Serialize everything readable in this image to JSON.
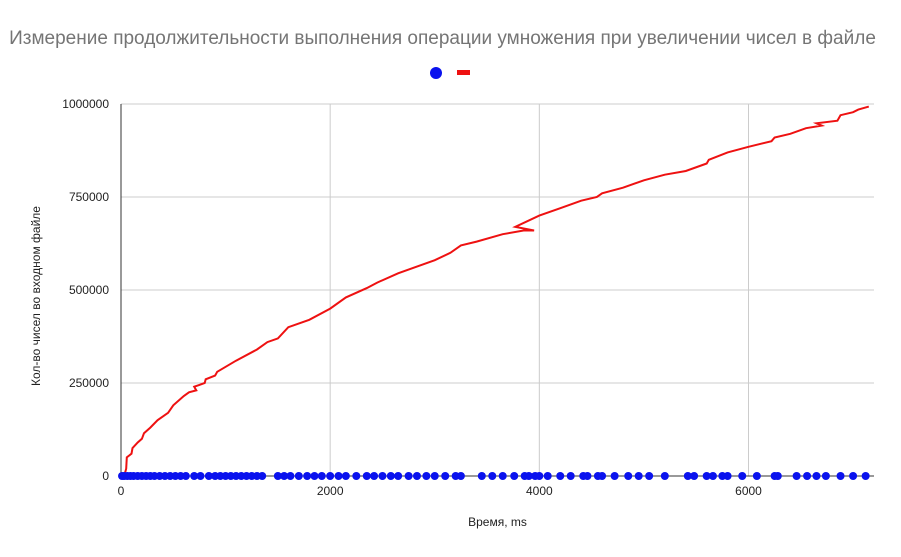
{
  "chart_data": {
    "type": "scatter",
    "title": "Измерение продолжительности выполнения операции умножения при увеличении чисел в файле",
    "xlabel": "Время, ms",
    "ylabel": "Кол-во чисел во входном файле",
    "xlim": [
      0,
      7200
    ],
    "ylim": [
      0,
      1000000
    ],
    "xticks": [
      "0",
      "2000",
      "4000",
      "6000"
    ],
    "yticks": [
      "0",
      "250000",
      "500000",
      "750000",
      "1000000"
    ],
    "grid": true,
    "legend": "top-center",
    "colors": {
      "blue": "#0a12ee",
      "red": "#ee1111",
      "grid": "#cccccc",
      "axis": "#333333"
    },
    "series": [
      {
        "marker": "dot",
        "color": "#0a12ee",
        "points": [
          [
            10,
            0
          ],
          [
            30,
            0
          ],
          [
            60,
            0
          ],
          [
            90,
            0
          ],
          [
            120,
            0
          ],
          [
            160,
            0
          ],
          [
            200,
            0
          ],
          [
            240,
            0
          ],
          [
            280,
            0
          ],
          [
            320,
            0
          ],
          [
            370,
            0
          ],
          [
            420,
            0
          ],
          [
            470,
            0
          ],
          [
            520,
            0
          ],
          [
            570,
            0
          ],
          [
            620,
            0
          ],
          [
            700,
            0
          ],
          [
            760,
            0
          ],
          [
            840,
            0
          ],
          [
            900,
            0
          ],
          [
            950,
            0
          ],
          [
            1000,
            0
          ],
          [
            1050,
            0
          ],
          [
            1100,
            0
          ],
          [
            1150,
            0
          ],
          [
            1200,
            0
          ],
          [
            1250,
            0
          ],
          [
            1300,
            0
          ],
          [
            1350,
            0
          ],
          [
            1500,
            0
          ],
          [
            1560,
            0
          ],
          [
            1620,
            0
          ],
          [
            1700,
            0
          ],
          [
            1780,
            0
          ],
          [
            1850,
            0
          ],
          [
            1920,
            0
          ],
          [
            2000,
            0
          ],
          [
            2080,
            0
          ],
          [
            2150,
            0
          ],
          [
            2250,
            0
          ],
          [
            2350,
            0
          ],
          [
            2420,
            0
          ],
          [
            2500,
            0
          ],
          [
            2580,
            0
          ],
          [
            2650,
            0
          ],
          [
            2750,
            0
          ],
          [
            2830,
            0
          ],
          [
            2920,
            0
          ],
          [
            3000,
            0
          ],
          [
            3100,
            0
          ],
          [
            3200,
            0
          ],
          [
            3250,
            0
          ],
          [
            3450,
            0
          ],
          [
            3550,
            0
          ],
          [
            3650,
            0
          ],
          [
            3760,
            0
          ],
          [
            3860,
            0
          ],
          [
            3900,
            0
          ],
          [
            3960,
            0
          ],
          [
            4000,
            0
          ],
          [
            4080,
            0
          ],
          [
            4200,
            0
          ],
          [
            4300,
            0
          ],
          [
            4420,
            0
          ],
          [
            4460,
            0
          ],
          [
            4560,
            0
          ],
          [
            4600,
            0
          ],
          [
            4720,
            0
          ],
          [
            4850,
            0
          ],
          [
            4950,
            0
          ],
          [
            5050,
            0
          ],
          [
            5200,
            0
          ],
          [
            5420,
            0
          ],
          [
            5480,
            0
          ],
          [
            5600,
            0
          ],
          [
            5660,
            0
          ],
          [
            5750,
            0
          ],
          [
            5800,
            0
          ],
          [
            5940,
            0
          ],
          [
            6080,
            0
          ],
          [
            6250,
            0
          ],
          [
            6280,
            0
          ],
          [
            6460,
            0
          ],
          [
            6560,
            0
          ],
          [
            6650,
            0
          ],
          [
            6740,
            0
          ],
          [
            6880,
            0
          ],
          [
            7000,
            0
          ],
          [
            7120,
            0
          ]
        ]
      },
      {
        "marker": "line",
        "color": "#ee1111",
        "points": [
          [
            0,
            0
          ],
          [
            20,
            5000
          ],
          [
            40,
            10000
          ],
          [
            50,
            20000
          ],
          [
            55,
            50000
          ],
          [
            100,
            60000
          ],
          [
            110,
            75000
          ],
          [
            160,
            90000
          ],
          [
            200,
            100000
          ],
          [
            220,
            115000
          ],
          [
            280,
            130000
          ],
          [
            350,
            150000
          ],
          [
            450,
            170000
          ],
          [
            500,
            190000
          ],
          [
            600,
            215000
          ],
          [
            650,
            225000
          ],
          [
            720,
            230000
          ],
          [
            700,
            240000
          ],
          [
            750,
            245000
          ],
          [
            800,
            250000
          ],
          [
            810,
            260000
          ],
          [
            900,
            270000
          ],
          [
            920,
            280000
          ],
          [
            1100,
            310000
          ],
          [
            1300,
            340000
          ],
          [
            1400,
            360000
          ],
          [
            1500,
            370000
          ],
          [
            1600,
            400000
          ],
          [
            1800,
            420000
          ],
          [
            2000,
            450000
          ],
          [
            2150,
            480000
          ],
          [
            2350,
            505000
          ],
          [
            2450,
            520000
          ],
          [
            2650,
            545000
          ],
          [
            2800,
            560000
          ],
          [
            3000,
            580000
          ],
          [
            3150,
            600000
          ],
          [
            3250,
            620000
          ],
          [
            3400,
            630000
          ],
          [
            3650,
            650000
          ],
          [
            3850,
            660000
          ],
          [
            3950,
            660000
          ],
          [
            3770,
            670000
          ],
          [
            4000,
            700000
          ],
          [
            4200,
            720000
          ],
          [
            4400,
            740000
          ],
          [
            4550,
            750000
          ],
          [
            4600,
            760000
          ],
          [
            4800,
            775000
          ],
          [
            5000,
            795000
          ],
          [
            5200,
            810000
          ],
          [
            5400,
            820000
          ],
          [
            5600,
            840000
          ],
          [
            5620,
            850000
          ],
          [
            5800,
            870000
          ],
          [
            6000,
            885000
          ],
          [
            6220,
            900000
          ],
          [
            6250,
            910000
          ],
          [
            6400,
            920000
          ],
          [
            6550,
            935000
          ],
          [
            6700,
            942000
          ],
          [
            6650,
            948000
          ],
          [
            6850,
            955000
          ],
          [
            6880,
            970000
          ],
          [
            7000,
            978000
          ],
          [
            7050,
            985000
          ],
          [
            7150,
            993000
          ]
        ]
      }
    ]
  }
}
